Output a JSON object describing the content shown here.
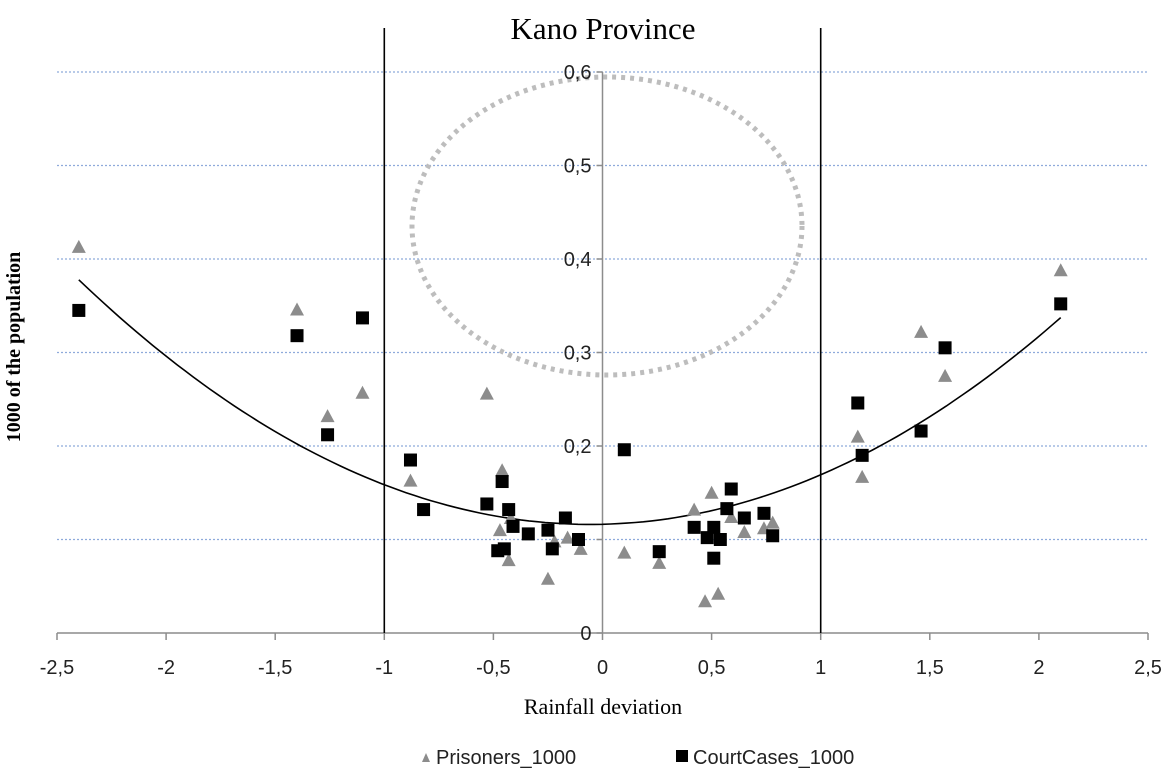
{
  "chart_data": {
    "type": "scatter",
    "title": "Kano Province",
    "xlabel": "Rainfall deviation",
    "ylabel": "1000 of the population",
    "xlim": [
      -2.5,
      2.5
    ],
    "ylim": [
      0,
      0.6
    ],
    "x_ticks": [
      "-2,5",
      "-2",
      "-1,5",
      "-1",
      "-0,5",
      "0",
      "0,5",
      "1",
      "1,5",
      "2",
      "2,5"
    ],
    "y_ticks": [
      "0",
      "0,1",
      "0,2",
      "0,3",
      "0,4",
      "0,5",
      "0,6"
    ],
    "y_tick_labels_shown": [
      "0",
      "",
      "0,2",
      "0,3",
      "0,4",
      "0,5",
      "0,6"
    ],
    "grid": "horizontal dotted",
    "legend_position": "bottom",
    "vertical_lines": [
      -1,
      1
    ],
    "series": [
      {
        "name": "Prisoners_1000",
        "marker": "triangle",
        "color": "#8c8c8c",
        "points": [
          [
            -2.4,
            0.413
          ],
          [
            -1.4,
            0.346
          ],
          [
            -1.26,
            0.232
          ],
          [
            -1.1,
            0.257
          ],
          [
            -0.88,
            0.163
          ],
          [
            -0.53,
            0.256
          ],
          [
            -0.47,
            0.11
          ],
          [
            -0.46,
            0.174
          ],
          [
            -0.42,
            0.123
          ],
          [
            -0.43,
            0.078
          ],
          [
            -0.25,
            0.058
          ],
          [
            -0.22,
            0.098
          ],
          [
            -0.16,
            0.102
          ],
          [
            -0.1,
            0.09
          ],
          [
            0.1,
            0.086
          ],
          [
            0.26,
            0.075
          ],
          [
            0.42,
            0.132
          ],
          [
            0.47,
            0.034
          ],
          [
            0.5,
            0.15
          ],
          [
            0.53,
            0.042
          ],
          [
            0.59,
            0.124
          ],
          [
            0.65,
            0.108
          ],
          [
            0.74,
            0.112
          ],
          [
            0.78,
            0.118
          ],
          [
            1.17,
            0.21
          ],
          [
            1.19,
            0.167
          ],
          [
            1.46,
            0.322
          ],
          [
            1.57,
            0.275
          ],
          [
            2.1,
            0.388
          ]
        ]
      },
      {
        "name": "CourtCases_1000",
        "marker": "square",
        "color": "#000000",
        "points": [
          [
            -2.4,
            0.345
          ],
          [
            -1.4,
            0.318
          ],
          [
            -1.26,
            0.212
          ],
          [
            -1.1,
            0.337
          ],
          [
            -0.88,
            0.185
          ],
          [
            -0.82,
            0.132
          ],
          [
            -0.53,
            0.138
          ],
          [
            -0.48,
            0.088
          ],
          [
            -0.46,
            0.162
          ],
          [
            -0.45,
            0.09
          ],
          [
            -0.43,
            0.132
          ],
          [
            -0.41,
            0.114
          ],
          [
            -0.34,
            0.106
          ],
          [
            -0.25,
            0.11
          ],
          [
            -0.23,
            0.09
          ],
          [
            -0.17,
            0.123
          ],
          [
            -0.11,
            0.1
          ],
          [
            0.1,
            0.196
          ],
          [
            0.26,
            0.087
          ],
          [
            0.42,
            0.113
          ],
          [
            0.48,
            0.102
          ],
          [
            0.51,
            0.113
          ],
          [
            0.51,
            0.08
          ],
          [
            0.54,
            0.1
          ],
          [
            0.57,
            0.133
          ],
          [
            0.59,
            0.154
          ],
          [
            0.65,
            0.123
          ],
          [
            0.74,
            0.128
          ],
          [
            0.78,
            0.104
          ],
          [
            1.17,
            0.246
          ],
          [
            1.19,
            0.19
          ],
          [
            1.46,
            0.216
          ],
          [
            1.57,
            0.305
          ],
          [
            2.1,
            0.352
          ]
        ]
      }
    ],
    "trendline": {
      "type": "polynomial",
      "x_range": [
        -2.4,
        2.1
      ],
      "coefficients": [
        0.1163,
        0.0053,
        0.0476
      ]
    }
  }
}
